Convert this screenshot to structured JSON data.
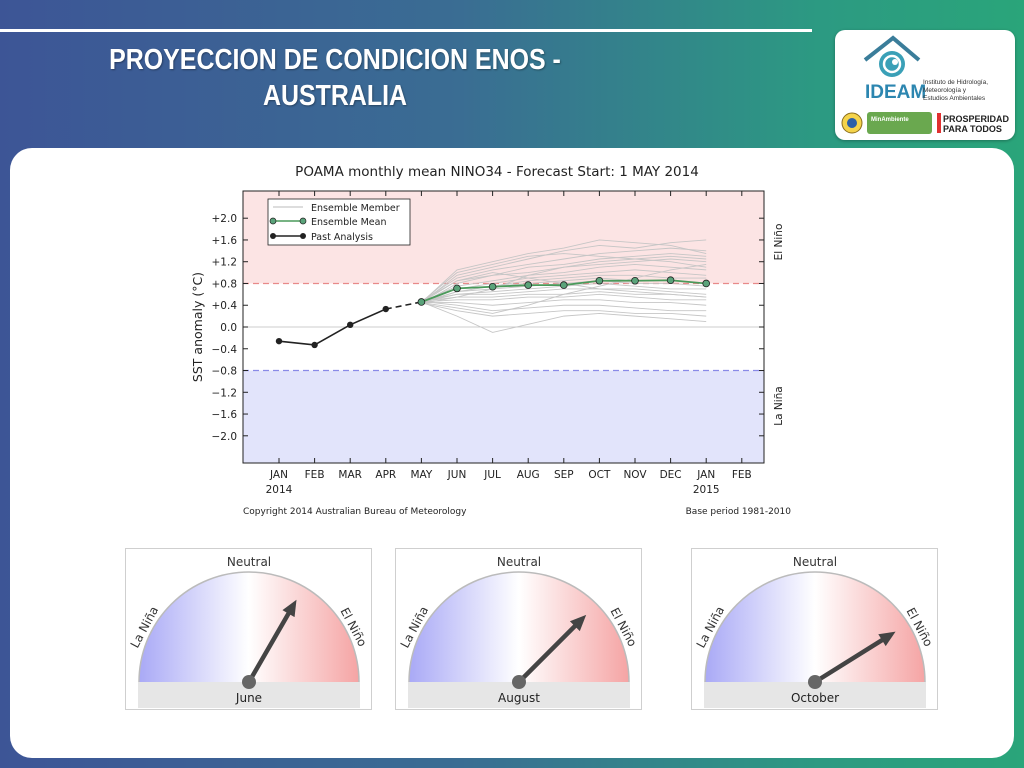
{
  "slide": {
    "title_line1": "PROYECCION DE CONDICION ENOS -",
    "title_line2": "AUSTRALIA"
  },
  "logo": {
    "name": "IDEAM",
    "subtitle_line1": "Instituto de Hidrología,",
    "subtitle_line2": "Meteorología y",
    "subtitle_line3": "Estudios Ambientales",
    "ministry": "MinAmbiente",
    "slogan_line1": "PROSPERIDAD",
    "slogan_line2": "PARA TODOS",
    "icon": "ideam-globe-icon",
    "seal_icon": "colombia-seal-icon"
  },
  "chart_data": {
    "type": "line",
    "title": "POAMA monthly mean NINO34 - Forecast Start: 1 MAY 2014",
    "ylabel": "SST anomaly (°C)",
    "ylim": [
      -2.5,
      2.5
    ],
    "yticks": [
      "+2.0",
      "+1.6",
      "+1.2",
      "+0.8",
      "+0.4",
      "0.0",
      "−0.4",
      "−0.8",
      "−1.2",
      "−1.6",
      "−2.0"
    ],
    "ytick_values": [
      2.0,
      1.6,
      1.2,
      0.8,
      0.4,
      0.0,
      -0.4,
      -0.8,
      -1.2,
      -1.6,
      -2.0
    ],
    "categories": [
      "JAN",
      "FEB",
      "MAR",
      "APR",
      "MAY",
      "JUN",
      "JUL",
      "AUG",
      "SEP",
      "OCT",
      "NOV",
      "DEC",
      "JAN",
      "FEB"
    ],
    "year_labels": [
      {
        "index": 0,
        "label": "2014"
      },
      {
        "index": 12,
        "label": "2015"
      }
    ],
    "thresholds": {
      "el_nino": 0.8,
      "la_nina": -0.8
    },
    "region_labels": {
      "el_nino": "El Niño",
      "la_nina": "La Niña"
    },
    "legend": {
      "position": "top-left",
      "entries": [
        "Ensemble Member",
        "Ensemble Mean",
        "Past Analysis"
      ]
    },
    "past_analysis": {
      "x": [
        0,
        1,
        2,
        3
      ],
      "y": [
        -0.26,
        -0.33,
        0.04,
        0.33
      ]
    },
    "transition": {
      "x": [
        3,
        4
      ],
      "y": [
        0.33,
        0.46
      ]
    },
    "ensemble_mean": {
      "x": [
        4,
        5,
        6,
        7,
        8,
        9,
        10,
        11,
        12
      ],
      "y": [
        0.46,
        0.71,
        0.74,
        0.77,
        0.77,
        0.85,
        0.85,
        0.86,
        0.8
      ]
    },
    "ensemble_members": [
      [
        0.45,
        1.05,
        1.2,
        1.35,
        1.45,
        1.6,
        1.55,
        1.5,
        1.35
      ],
      [
        0.44,
        0.95,
        1.1,
        1.25,
        1.4,
        1.5,
        1.45,
        1.55,
        1.6
      ],
      [
        0.47,
        0.9,
        1.05,
        1.15,
        1.25,
        1.35,
        1.4,
        1.45,
        1.4
      ],
      [
        0.48,
        0.85,
        0.95,
        1.1,
        1.15,
        1.25,
        1.3,
        1.35,
        1.3
      ],
      [
        0.43,
        0.8,
        0.95,
        1.0,
        1.1,
        1.15,
        1.2,
        1.25,
        1.2
      ],
      [
        0.46,
        0.75,
        0.85,
        0.95,
        1.0,
        1.1,
        1.15,
        1.1,
        1.05
      ],
      [
        0.45,
        0.7,
        0.8,
        0.9,
        0.95,
        1.0,
        1.05,
        1.0,
        0.95
      ],
      [
        0.47,
        0.7,
        0.75,
        0.85,
        0.9,
        0.95,
        0.95,
        0.9,
        0.9
      ],
      [
        0.44,
        0.65,
        0.75,
        0.8,
        0.85,
        0.9,
        0.85,
        0.85,
        0.8
      ],
      [
        0.46,
        0.65,
        0.7,
        0.75,
        0.8,
        0.85,
        0.8,
        0.8,
        0.75
      ],
      [
        0.45,
        0.6,
        0.65,
        0.7,
        0.75,
        0.8,
        0.75,
        0.7,
        0.7
      ],
      [
        0.48,
        0.6,
        0.6,
        0.65,
        0.7,
        0.7,
        0.7,
        0.65,
        0.6
      ],
      [
        0.43,
        0.55,
        0.55,
        0.6,
        0.6,
        0.65,
        0.6,
        0.6,
        0.55
      ],
      [
        0.46,
        0.5,
        0.5,
        0.55,
        0.55,
        0.6,
        0.55,
        0.5,
        0.5
      ],
      [
        0.45,
        0.45,
        0.4,
        0.45,
        0.5,
        0.5,
        0.45,
        0.45,
        0.4
      ],
      [
        0.47,
        0.4,
        0.3,
        0.35,
        0.4,
        0.4,
        0.35,
        0.3,
        0.3
      ],
      [
        0.44,
        0.3,
        0.2,
        0.25,
        0.3,
        0.3,
        0.25,
        0.25,
        0.2
      ],
      [
        0.46,
        0.2,
        -0.1,
        0.05,
        0.2,
        0.25,
        0.2,
        0.15,
        0.1
      ],
      [
        0.45,
        0.35,
        0.25,
        0.4,
        0.6,
        0.75,
        0.9,
        1.05,
        1.15
      ],
      [
        0.47,
        0.55,
        0.7,
        0.95,
        1.1,
        1.2,
        1.25,
        1.3,
        1.25
      ],
      [
        0.45,
        0.85,
        1.0,
        0.9,
        0.8,
        0.7,
        0.65,
        0.6,
        0.55
      ],
      [
        0.46,
        1.0,
        1.15,
        1.3,
        1.35,
        1.3,
        1.25,
        1.2,
        1.1
      ]
    ],
    "copyright": "Copyright 2014 Australian Bureau of Meteorology",
    "base_period": "Base period 1981-2010"
  },
  "gauges": [
    {
      "month": "June",
      "neutral_label": "Neutral",
      "la_nina_label": "La Niña",
      "el_nino_label": "El Niño",
      "needle_angle_deg": 60
    },
    {
      "month": "August",
      "neutral_label": "Neutral",
      "la_nina_label": "La Niña",
      "el_nino_label": "El Niño",
      "needle_angle_deg": 45
    },
    {
      "month": "October",
      "neutral_label": "Neutral",
      "la_nina_label": "La Niña",
      "el_nino_label": "El Niño",
      "needle_angle_deg": 32
    }
  ]
}
